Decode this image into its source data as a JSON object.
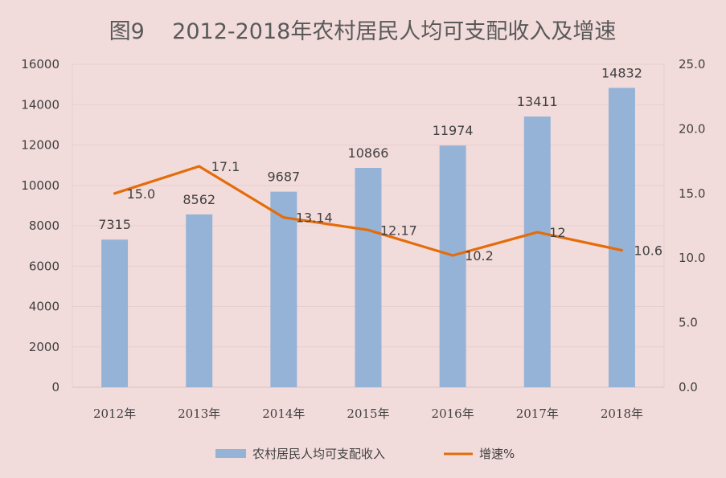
{
  "chart_data": {
    "type": "bar",
    "title": "图9    2012-2018年农村居民人均可支配收入及增速",
    "categories": [
      "2012年",
      "2013年",
      "2014年",
      "2015年",
      "2016年",
      "2017年",
      "2018年"
    ],
    "series": [
      {
        "name": "农村居民人均可支配收入",
        "type": "bar",
        "axis": "left",
        "values": [
          7315,
          8562,
          9687,
          10866,
          11974,
          13411,
          14832
        ],
        "labels": [
          "7315",
          "8562",
          "9687",
          "10866",
          "11974",
          "13411",
          "14832"
        ],
        "color": "#95b3d7"
      },
      {
        "name": "增速%",
        "type": "line",
        "axis": "right",
        "values": [
          15.0,
          17.1,
          13.14,
          12.17,
          10.2,
          12,
          10.6
        ],
        "labels": [
          "15.0",
          "17.1",
          "13.14",
          "12.17",
          "10.2",
          "12",
          "10.6"
        ],
        "color": "#e46c0a"
      }
    ],
    "y_left": {
      "ylim": [
        0,
        16000
      ],
      "ticks": [
        "0",
        "2000",
        "4000",
        "6000",
        "8000",
        "10000",
        "12000",
        "14000",
        "16000"
      ]
    },
    "y_right": {
      "ylim": [
        0,
        25
      ],
      "ticks": [
        "0.0",
        "5.0",
        "10.0",
        "15.0",
        "20.0",
        "25.0"
      ]
    },
    "grid": true,
    "legend_position": "bottom",
    "colors": {
      "background": "#f2dcdb",
      "plot_area": "#f2dcdb",
      "grid": "#e6cfce"
    }
  }
}
